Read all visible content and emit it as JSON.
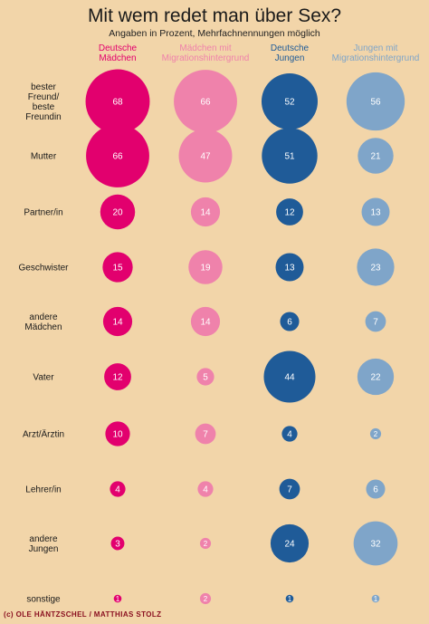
{
  "title": "Mit wem redet man über Sex?",
  "subtitle": "Angaben in Prozent, Mehrfachnennungen möglich",
  "credit": "(c) OLE HÄNTZSCHEL / MATTHIAS STOLZ",
  "columns": [
    {
      "line1": "Deutsche",
      "line2": "Mädchen",
      "color": "#e2006e"
    },
    {
      "line1": "Mädchen mit",
      "line2": "Migrationshintergrund",
      "color": "#ef82ab"
    },
    {
      "line1": "Deutsche",
      "line2": "Jungen",
      "color": "#1f5b98"
    },
    {
      "line1": "Jungen mit",
      "line2": "Migrationshintergrund",
      "color": "#7fa5c9"
    }
  ],
  "chart_data": {
    "type": "bubble",
    "title": "Mit wem redet man über Sex?",
    "subtitle": "Angaben in Prozent, Mehrfachnennungen möglich",
    "categories": [
      "bester Freund/ beste Freundin",
      "Mutter",
      "Partner/in",
      "Geschwister",
      "andere Mädchen",
      "Vater",
      "Arzt/Ärztin",
      "Lehrer/in",
      "andere Jungen",
      "sonstige"
    ],
    "category_lines": [
      [
        "bester",
        "Freund/",
        "beste",
        "Freundin"
      ],
      [
        "Mutter"
      ],
      [
        "Partner/in"
      ],
      [
        "Geschwister"
      ],
      [
        "andere",
        "Mädchen"
      ],
      [
        "Vater"
      ],
      [
        "Arzt/Ärztin"
      ],
      [
        "Lehrer/in"
      ],
      [
        "andere",
        "Jungen"
      ],
      [
        "sonstige"
      ]
    ],
    "series": [
      {
        "name": "Deutsche Mädchen",
        "color": "#e2006e",
        "values": [
          68,
          66,
          20,
          15,
          14,
          12,
          10,
          4,
          3,
          1
        ]
      },
      {
        "name": "Mädchen mit Migrationshintergrund",
        "color": "#ef82ab",
        "values": [
          66,
          47,
          14,
          19,
          14,
          5,
          7,
          4,
          2,
          2
        ]
      },
      {
        "name": "Deutsche Jungen",
        "color": "#1f5b98",
        "values": [
          52,
          51,
          12,
          13,
          6,
          44,
          4,
          7,
          24,
          1
        ]
      },
      {
        "name": "Jungen mit Migrationshintergrund",
        "color": "#7fa5c9",
        "values": [
          56,
          21,
          13,
          23,
          7,
          22,
          2,
          6,
          32,
          1
        ]
      }
    ]
  }
}
